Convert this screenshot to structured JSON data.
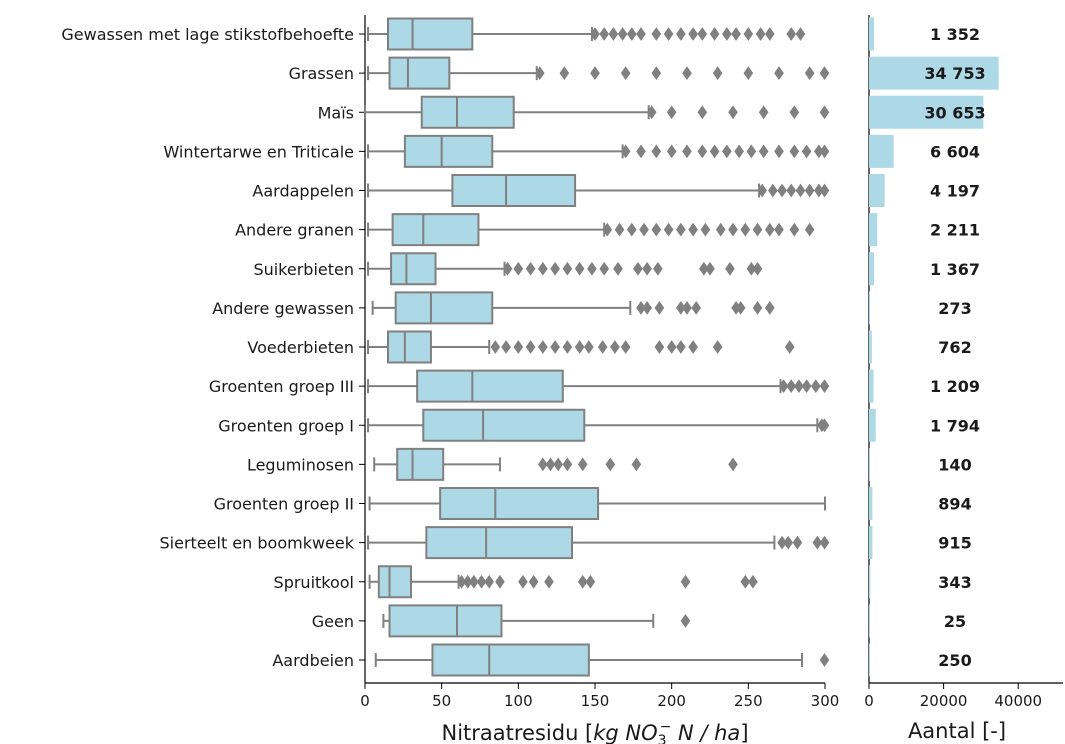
{
  "chart_data": [
    {
      "type": "box",
      "xlabel": "Nitraatresidu [kg NO3⁻ N / ha]",
      "xlabel_parts": {
        "prefix": "Nitraatresidu [",
        "unit_main": "kg NO",
        "unit_sub": "3",
        "unit_sup": "−",
        "unit_rest": "N / ha",
        "suffix": "]"
      },
      "xlim": [
        0,
        300
      ],
      "xticks": [
        "0",
        "50",
        "100",
        "150",
        "200",
        "250",
        "300"
      ],
      "grid": false,
      "color": "#add8e6",
      "line_color": "#808080",
      "categories": [
        "Gewassen met lage stikstofbehoefte",
        "Grassen",
        "Maïs",
        "Wintertarwe en Triticale",
        "Aardappelen",
        "Andere granen",
        "Suikerbieten",
        "Andere gewassen",
        "Voederbieten",
        "Groenten groep III",
        "Groenten groep I",
        "Leguminosen",
        "Groenten groep II",
        "Sierteelt en boomkweek",
        "Spruitkool",
        "Geen",
        "Aardbeien"
      ],
      "boxes": [
        {
          "whislo": 2,
          "q1": 15,
          "med": 31,
          "q3": 70,
          "whishi": 148,
          "outliers": [
            150,
            156,
            162,
            168,
            174,
            180,
            190,
            198,
            206,
            214,
            220,
            228,
            236,
            242,
            250,
            258,
            264,
            278,
            284
          ]
        },
        {
          "whislo": 2,
          "q1": 16,
          "med": 28,
          "q3": 55,
          "whishi": 112,
          "outliers": [
            114,
            130,
            150,
            170,
            190,
            210,
            230,
            250,
            270,
            290,
            300
          ]
        },
        {
          "whislo": 0,
          "q1": 37,
          "med": 60,
          "q3": 97,
          "whishi": 185,
          "outliers": [
            187,
            200,
            220,
            240,
            260,
            280,
            300
          ]
        },
        {
          "whislo": 2,
          "q1": 26,
          "med": 50,
          "q3": 83,
          "whishi": 168,
          "outliers": [
            170,
            180,
            190,
            200,
            210,
            220,
            228,
            236,
            244,
            252,
            260,
            270,
            280,
            288,
            296,
            300
          ]
        },
        {
          "whislo": 2,
          "q1": 57,
          "med": 92,
          "q3": 137,
          "whishi": 257,
          "outliers": [
            259,
            266,
            272,
            278,
            284,
            290,
            296,
            300
          ]
        },
        {
          "whislo": 2,
          "q1": 18,
          "med": 38,
          "q3": 74,
          "whishi": 156,
          "outliers": [
            158,
            166,
            174,
            182,
            190,
            198,
            206,
            214,
            222,
            232,
            240,
            248,
            256,
            264,
            270,
            280,
            290
          ]
        },
        {
          "whislo": 2,
          "q1": 17,
          "med": 27,
          "q3": 46,
          "whishi": 91,
          "outliers": [
            93,
            100,
            108,
            116,
            124,
            132,
            140,
            148,
            156,
            165,
            178,
            184,
            191,
            221,
            225,
            238,
            252,
            256
          ]
        },
        {
          "whislo": 5,
          "q1": 20,
          "med": 43,
          "q3": 83,
          "whishi": 173,
          "outliers": [
            180,
            184,
            192,
            206,
            210,
            216,
            242,
            245,
            256,
            264
          ]
        },
        {
          "whislo": 2,
          "q1": 15,
          "med": 26,
          "q3": 43,
          "whishi": 81,
          "outliers": [
            85,
            92,
            100,
            108,
            116,
            124,
            132,
            140,
            146,
            155,
            163,
            170,
            192,
            200,
            206,
            214,
            230,
            277
          ]
        },
        {
          "whislo": 2,
          "q1": 34,
          "med": 70,
          "q3": 129,
          "whishi": 271,
          "outliers": [
            273,
            278,
            283,
            288,
            294,
            300
          ]
        },
        {
          "whislo": 2,
          "q1": 38,
          "med": 77,
          "q3": 143,
          "whishi": 295,
          "outliers": [
            298,
            300
          ]
        },
        {
          "whislo": 6,
          "q1": 21,
          "med": 31,
          "q3": 51,
          "whishi": 88,
          "outliers": [
            116,
            121,
            126,
            132,
            142,
            160,
            177,
            240
          ]
        },
        {
          "whislo": 3,
          "q1": 49,
          "med": 85,
          "q3": 152,
          "whishi": 300,
          "outliers": []
        },
        {
          "whislo": 2,
          "q1": 40,
          "med": 79,
          "q3": 135,
          "whishi": 267,
          "outliers": [
            272,
            276,
            282,
            295,
            300
          ]
        },
        {
          "whislo": 3,
          "q1": 9,
          "med": 16,
          "q3": 30,
          "whishi": 61,
          "outliers": [
            63,
            67,
            71,
            76,
            81,
            88,
            103,
            110,
            120,
            142,
            147,
            209,
            248,
            253
          ]
        },
        {
          "whislo": 12,
          "q1": 16,
          "med": 60,
          "q3": 89,
          "whishi": 188,
          "outliers": [
            209
          ]
        },
        {
          "whislo": 7,
          "q1": 44,
          "med": 81,
          "q3": 146,
          "whishi": 285,
          "outliers": [
            300
          ]
        }
      ]
    },
    {
      "type": "bar",
      "orientation": "horizontal",
      "xlabel": "Aantal [-]",
      "xlim": [
        0,
        52000
      ],
      "xticks": [
        "0",
        "20000",
        "40000"
      ],
      "color": "#add8e6",
      "values": [
        1352,
        34753,
        30653,
        6604,
        4197,
        2211,
        1367,
        273,
        762,
        1209,
        1794,
        140,
        894,
        915,
        343,
        25,
        250
      ],
      "value_labels": [
        "1 352",
        "34 753",
        "30 653",
        "6 604",
        "4 197",
        "2 211",
        "1 367",
        "273",
        "762",
        "1 209",
        "1 794",
        "140",
        "894",
        "915",
        "343",
        "25",
        "250"
      ]
    }
  ]
}
